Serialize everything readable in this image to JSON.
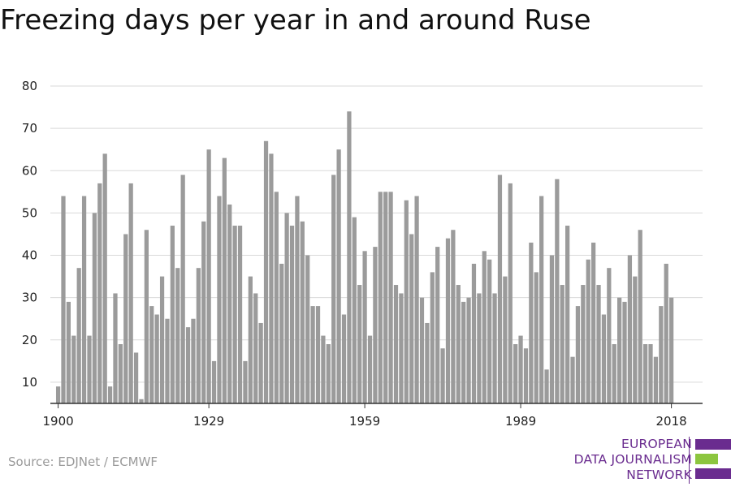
{
  "title": "Freezing days per year in and around Ruse",
  "source": "Source: EDJNet / ECMWF",
  "logo": {
    "line1": "EUROPEAN",
    "line2": "DATA JOURNALISM",
    "line3": "NETWORK",
    "colors": {
      "purple": "#6a2c8f",
      "green": "#8cc63f"
    }
  },
  "chart_data": {
    "type": "bar",
    "title": "Freezing days per year in and around Ruse",
    "xlabel": "",
    "ylabel": "",
    "x_start": 1900,
    "x_end": 2018,
    "x_ticks": [
      1900,
      1929,
      1959,
      1989,
      2018
    ],
    "y_ticks": [
      10,
      20,
      30,
      40,
      50,
      60,
      70,
      80
    ],
    "ylim": [
      5,
      80
    ],
    "grid": true,
    "bar_color": "#9b9b9b",
    "values": [
      9,
      54,
      29,
      21,
      37,
      54,
      21,
      50,
      57,
      64,
      9,
      31,
      19,
      45,
      57,
      17,
      6,
      46,
      28,
      26,
      35,
      25,
      47,
      37,
      59,
      23,
      25,
      37,
      48,
      65,
      15,
      54,
      63,
      52,
      47,
      47,
      15,
      35,
      31,
      24,
      67,
      64,
      55,
      38,
      50,
      47,
      54,
      48,
      40,
      28,
      28,
      21,
      19,
      59,
      65,
      26,
      74,
      49,
      33,
      41,
      21,
      42,
      55,
      55,
      55,
      33,
      31,
      53,
      45,
      54,
      30,
      24,
      36,
      42,
      18,
      44,
      46,
      33,
      29,
      30,
      38,
      31,
      41,
      39,
      31,
      59,
      35,
      57,
      19,
      21,
      18,
      43,
      36,
      54,
      13,
      40,
      58,
      33,
      47,
      16,
      28,
      33,
      39,
      43,
      33,
      26,
      37,
      19,
      30,
      29,
      40,
      35,
      46,
      19,
      19,
      16,
      28,
      38,
      30
    ]
  }
}
